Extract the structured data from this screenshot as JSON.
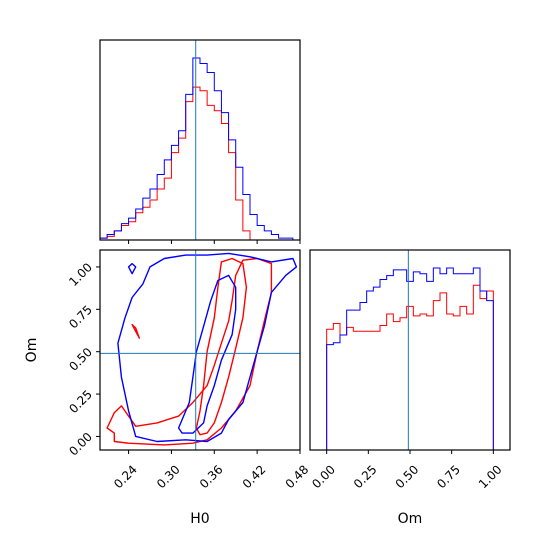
{
  "chart_data": {
    "type": "corner",
    "parameters": [
      "H0",
      "Om"
    ],
    "truth": {
      "H0": 0.334,
      "Om": 0.49
    },
    "colors": {
      "red": "#ff0000",
      "blue": "#0000ff",
      "truth": "#1f77b4"
    },
    "panels": [
      {
        "kind": "histogram",
        "parameter": "H0",
        "xlim": [
          0.2,
          0.48
        ],
        "x_ticks": [
          0.24,
          0.3,
          0.36,
          0.42,
          0.48
        ],
        "bin_edges": [
          0.2,
          0.21,
          0.22,
          0.23,
          0.24,
          0.25,
          0.26,
          0.27,
          0.28,
          0.29,
          0.3,
          0.31,
          0.32,
          0.33,
          0.34,
          0.35,
          0.36,
          0.37,
          0.38,
          0.39,
          0.4,
          0.41,
          0.42,
          0.43,
          0.44,
          0.45,
          0.46,
          0.47,
          0.48
        ],
        "series": [
          {
            "color": "red",
            "counts": [
              0.01,
              0.02,
              0.05,
              0.08,
              0.1,
              0.15,
              0.18,
              0.22,
              0.28,
              0.34,
              0.48,
              0.56,
              0.76,
              0.84,
              0.82,
              0.74,
              0.71,
              0.64,
              0.48,
              0.22,
              0.05,
              0,
              0,
              0,
              0,
              0,
              0,
              0
            ]
          },
          {
            "color": "blue",
            "counts": [
              0.01,
              0.03,
              0.05,
              0.09,
              0.12,
              0.17,
              0.23,
              0.28,
              0.36,
              0.44,
              0.52,
              0.6,
              0.8,
              1.0,
              0.97,
              0.92,
              0.82,
              0.7,
              0.55,
              0.4,
              0.25,
              0.14,
              0.08,
              0.05,
              0.03,
              0.01,
              0.01,
              0
            ]
          }
        ]
      },
      {
        "kind": "contour",
        "x_parameter": "H0",
        "y_parameter": "Om",
        "xlim": [
          0.2,
          0.48
        ],
        "ylim": [
          -0.08,
          1.1
        ],
        "x_ticks": [
          0.24,
          0.3,
          0.36,
          0.42,
          0.48
        ],
        "y_ticks": [
          0.0,
          0.25,
          0.5,
          0.75,
          1.0
        ],
        "contours": [
          {
            "color": "red",
            "level": "outer",
            "points": [
              [
                0.21,
                0.05
              ],
              [
                0.22,
                0.02
              ],
              [
                0.22,
                -0.03
              ],
              [
                0.24,
                -0.04
              ],
              [
                0.29,
                -0.05
              ],
              [
                0.33,
                -0.04
              ],
              [
                0.35,
                -0.02
              ],
              [
                0.37,
                0.05
              ],
              [
                0.39,
                0.15
              ],
              [
                0.41,
                0.3
              ],
              [
                0.42,
                0.5
              ],
              [
                0.43,
                0.68
              ],
              [
                0.44,
                0.85
              ],
              [
                0.44,
                1.02
              ],
              [
                0.42,
                1.05
              ],
              [
                0.4,
                1.04
              ],
              [
                0.39,
                0.95
              ],
              [
                0.385,
                0.8
              ],
              [
                0.38,
                0.68
              ],
              [
                0.37,
                0.55
              ],
              [
                0.36,
                0.42
              ],
              [
                0.35,
                0.3
              ],
              [
                0.33,
                0.2
              ],
              [
                0.31,
                0.12
              ],
              [
                0.28,
                0.08
              ],
              [
                0.25,
                0.06
              ],
              [
                0.23,
                0.18
              ],
              [
                0.22,
                0.14
              ]
            ]
          },
          {
            "color": "red",
            "level": "inner",
            "points": [
              [
                0.335,
                0.05
              ],
              [
                0.34,
                0.15
              ],
              [
                0.345,
                0.3
              ],
              [
                0.35,
                0.5
              ],
              [
                0.36,
                0.7
              ],
              [
                0.365,
                0.88
              ],
              [
                0.37,
                1.03
              ],
              [
                0.385,
                1.05
              ],
              [
                0.4,
                1.02
              ],
              [
                0.405,
                0.88
              ],
              [
                0.4,
                0.7
              ],
              [
                0.39,
                0.52
              ],
              [
                0.38,
                0.35
              ],
              [
                0.37,
                0.2
              ],
              [
                0.36,
                0.08
              ],
              [
                0.35,
                0.02
              ],
              [
                0.34,
                0.01
              ]
            ]
          },
          {
            "color": "red",
            "level": "fragment",
            "points": [
              [
                0.245,
                0.66
              ],
              [
                0.25,
                0.62
              ],
              [
                0.255,
                0.58
              ],
              [
                0.25,
                0.64
              ]
            ]
          },
          {
            "color": "blue",
            "level": "outer",
            "points": [
              [
                0.225,
                0.55
              ],
              [
                0.23,
                0.35
              ],
              [
                0.24,
                0.15
              ],
              [
                0.25,
                0.0
              ],
              [
                0.28,
                -0.03
              ],
              [
                0.32,
                -0.02
              ],
              [
                0.35,
                -0.03
              ],
              [
                0.37,
                0.02
              ],
              [
                0.38,
                0.1
              ],
              [
                0.4,
                0.2
              ],
              [
                0.41,
                0.35
              ],
              [
                0.42,
                0.5
              ],
              [
                0.43,
                0.65
              ],
              [
                0.44,
                0.85
              ],
              [
                0.46,
                0.95
              ],
              [
                0.475,
                1.0
              ],
              [
                0.47,
                1.05
              ],
              [
                0.44,
                1.03
              ],
              [
                0.41,
                1.06
              ],
              [
                0.38,
                1.08
              ],
              [
                0.35,
                1.07
              ],
              [
                0.32,
                1.07
              ],
              [
                0.29,
                1.05
              ],
              [
                0.27,
                1.0
              ],
              [
                0.26,
                0.9
              ],
              [
                0.245,
                0.82
              ],
              [
                0.235,
                0.7
              ]
            ]
          },
          {
            "color": "blue",
            "level": "inner",
            "points": [
              [
                0.31,
                0.05
              ],
              [
                0.325,
                0.2
              ],
              [
                0.33,
                0.35
              ],
              [
                0.335,
                0.5
              ],
              [
                0.345,
                0.65
              ],
              [
                0.355,
                0.8
              ],
              [
                0.365,
                0.92
              ],
              [
                0.38,
                0.95
              ],
              [
                0.39,
                0.88
              ],
              [
                0.39,
                0.75
              ],
              [
                0.385,
                0.6
              ],
              [
                0.37,
                0.45
              ],
              [
                0.36,
                0.3
              ],
              [
                0.35,
                0.18
              ],
              [
                0.345,
                0.08
              ],
              [
                0.33,
                0.02
              ],
              [
                0.315,
                0.02
              ]
            ]
          },
          {
            "color": "blue",
            "level": "fragment",
            "points": [
              [
                0.24,
                1.0
              ],
              [
                0.245,
                0.96
              ],
              [
                0.25,
                1.0
              ],
              [
                0.245,
                1.02
              ]
            ]
          }
        ]
      },
      {
        "kind": "histogram",
        "parameter": "Om",
        "xlim": [
          -0.1,
          1.1
        ],
        "x_ticks": [
          0.0,
          0.25,
          0.5,
          0.75,
          1.0
        ],
        "bin_edges": [
          0.0,
          0.04,
          0.08,
          0.12,
          0.16,
          0.2,
          0.24,
          0.28,
          0.32,
          0.36,
          0.4,
          0.44,
          0.48,
          0.52,
          0.56,
          0.6,
          0.64,
          0.68,
          0.72,
          0.76,
          0.8,
          0.84,
          0.88,
          0.92,
          0.96,
          1.0
        ],
        "series": [
          {
            "color": "red",
            "counts": [
              0.63,
              0.66,
              0.6,
              0.64,
              0.62,
              0.62,
              0.62,
              0.62,
              0.65,
              0.71,
              0.67,
              0.69,
              0.75,
              0.7,
              0.71,
              0.7,
              0.78,
              0.82,
              0.71,
              0.7,
              0.75,
              0.71,
              0.86,
              0.79,
              0.83
            ]
          },
          {
            "color": "blue",
            "counts": [
              0.55,
              0.56,
              0.6,
              0.73,
              0.73,
              0.77,
              0.83,
              0.85,
              0.89,
              0.91,
              0.94,
              0.94,
              0.88,
              0.93,
              0.92,
              0.88,
              0.95,
              0.92,
              0.95,
              0.92,
              0.92,
              0.92,
              0.95,
              0.83,
              0.78
            ]
          }
        ]
      }
    ]
  },
  "labels": {
    "x_bottom_left": "H0",
    "y_bottom_left": "Om",
    "x_bottom_right": "Om"
  },
  "tick_labels": {
    "h0": [
      "0.24",
      "0.30",
      "0.36",
      "0.42",
      "0.48"
    ],
    "om": [
      "0.00",
      "0.25",
      "0.50",
      "0.75",
      "1.00"
    ]
  }
}
